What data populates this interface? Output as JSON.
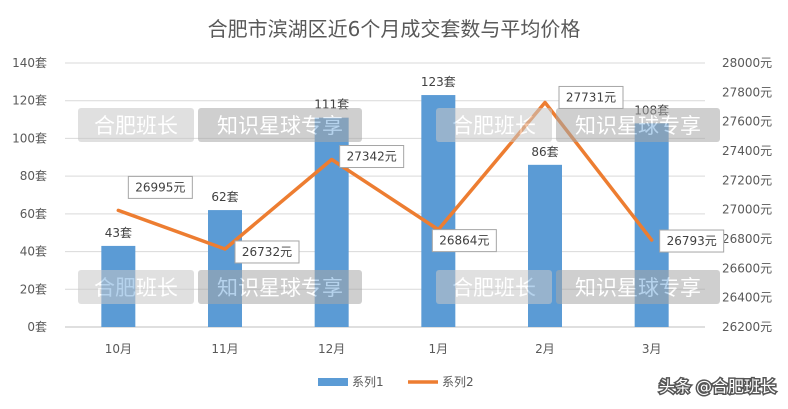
{
  "chart_data": {
    "type": "bar",
    "title": "合肥市滨湖区近6个月成交套数与平均价格",
    "categories": [
      "10月",
      "11月",
      "12月",
      "1月",
      "2月",
      "3月"
    ],
    "series": [
      {
        "name": "系列1",
        "type": "bar",
        "axis": "left",
        "values": [
          43,
          62,
          111,
          123,
          86,
          108
        ],
        "labels": [
          "43套",
          "62套",
          "111套",
          "123套",
          "86套",
          "108套"
        ],
        "color": "#5b9bd5"
      },
      {
        "name": "系列2",
        "type": "line",
        "axis": "right",
        "values": [
          26995,
          26732,
          27342,
          26864,
          27731,
          26793
        ],
        "labels": [
          "26995元",
          "26732元",
          "27342元",
          "26864元",
          "27731元",
          "26793元"
        ],
        "color": "#ed7d31"
      }
    ],
    "y_left": {
      "min": 0,
      "max": 140,
      "ticks": [
        0,
        20,
        40,
        60,
        80,
        100,
        120,
        140
      ],
      "tick_labels": [
        "0套",
        "20套",
        "40套",
        "60套",
        "80套",
        "100套",
        "120套",
        "140套"
      ]
    },
    "y_right": {
      "min": 26200,
      "max": 28000,
      "ticks": [
        26200,
        26400,
        26600,
        26800,
        27000,
        27200,
        27400,
        27600,
        27800,
        28000
      ],
      "tick_labels": [
        "26200元",
        "26400元",
        "26600元",
        "26800元",
        "27000元",
        "27200元",
        "27400元",
        "27600元",
        "27800元",
        "28000元"
      ]
    },
    "grid": true,
    "legend": "bottom"
  },
  "watermark": {
    "part1": "合肥班长",
    "part2": "知识星球专享"
  },
  "credit": "头条 @合肥班长"
}
